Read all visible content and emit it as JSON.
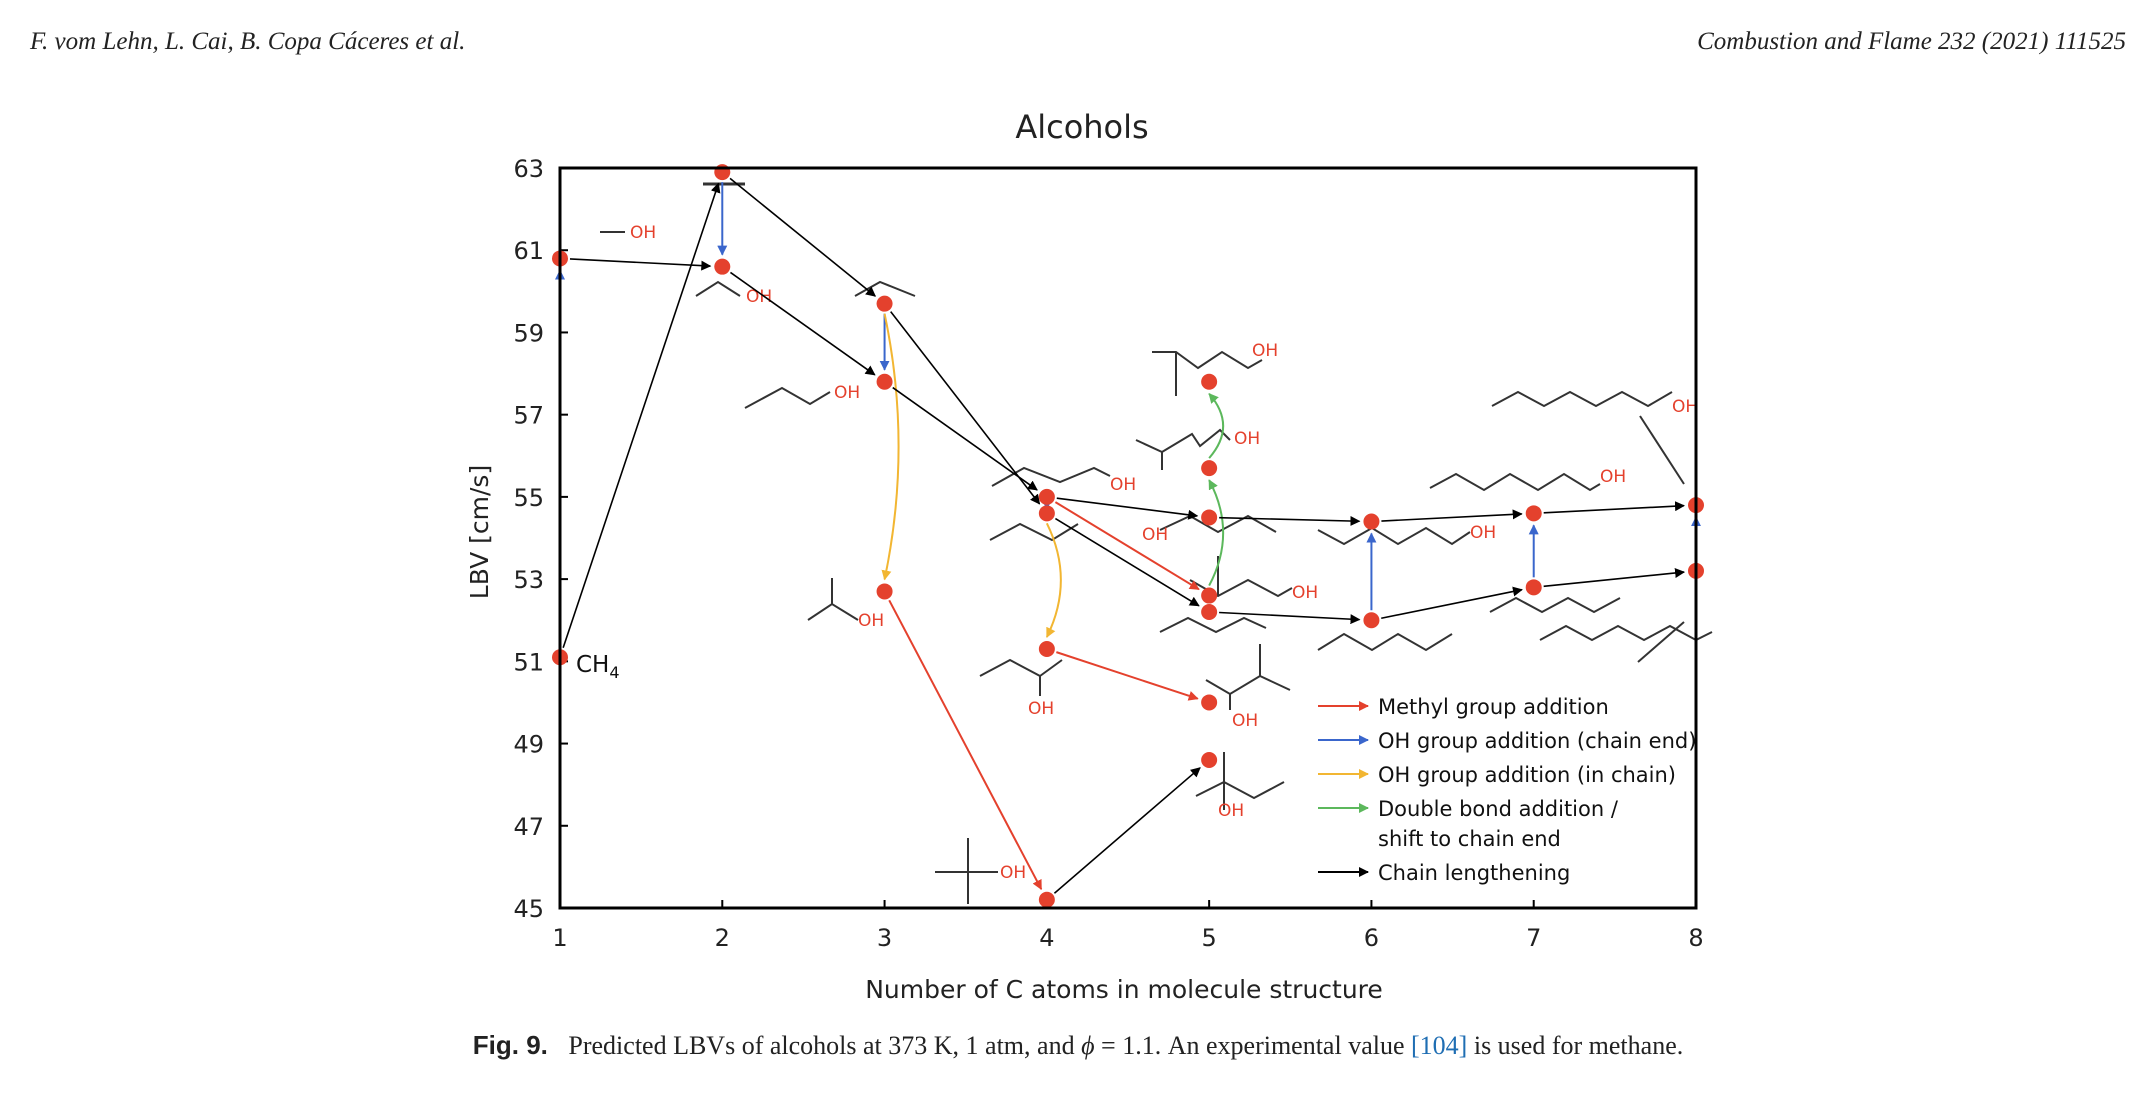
{
  "header": {
    "authors": "F. vom Lehn, L. Cai, B. Copa Cáceres et al.",
    "journal": "Combustion and Flame 232 (2021) 111525"
  },
  "caption": {
    "label": "Fig. 9.",
    "text_before_phi": "Predicted LBVs of alcohols at 373 K, 1 atm, and",
    "phi": "ϕ",
    "text_after_phi": "= 1.1. An experimental value",
    "ref": "[104]",
    "text_end": "is used for methane."
  },
  "colors": {
    "point": "#e4412d",
    "methyl": "#e4412d",
    "oh_end": "#3a66cc",
    "oh_in": "#f2b632",
    "double_bond": "#5cb85c",
    "chain": "#000000"
  },
  "chart_data": {
    "type": "scatter",
    "title": "Alcohols",
    "xlabel": "Number of C atoms in molecule structure",
    "ylabel": "LBV [cm/s]",
    "xlim": [
      1,
      8
    ],
    "ylim": [
      45,
      63
    ],
    "xticks": [
      "1",
      "2",
      "3",
      "4",
      "5",
      "6",
      "7",
      "8"
    ],
    "yticks": [
      "45",
      "47",
      "49",
      "51",
      "53",
      "55",
      "57",
      "59",
      "61",
      "63"
    ],
    "points": [
      {
        "id": "methane",
        "x": 1,
        "y": 51.1
      },
      {
        "id": "methanol",
        "x": 1,
        "y": 60.8
      },
      {
        "id": "ethane",
        "x": 2,
        "y": 62.9
      },
      {
        "id": "ethanol",
        "x": 2,
        "y": 60.6
      },
      {
        "id": "propane",
        "x": 3,
        "y": 59.7
      },
      {
        "id": "1-propanol",
        "x": 3,
        "y": 57.8
      },
      {
        "id": "2-propanol",
        "x": 3,
        "y": 52.7
      },
      {
        "id": "1-butanol",
        "x": 4,
        "y": 55.0
      },
      {
        "id": "butane",
        "x": 4,
        "y": 54.6
      },
      {
        "id": "2-butanol",
        "x": 4,
        "y": 51.3
      },
      {
        "id": "tert-butanol",
        "x": 4,
        "y": 45.2
      },
      {
        "id": "prenol-type",
        "x": 5,
        "y": 57.8
      },
      {
        "id": "pentenol",
        "x": 5,
        "y": 55.7
      },
      {
        "id": "1-pentanol",
        "x": 5,
        "y": 54.5
      },
      {
        "id": "2-methyl-1-butanol",
        "x": 5,
        "y": 52.6
      },
      {
        "id": "pentane",
        "x": 5,
        "y": 52.2
      },
      {
        "id": "3-methyl-2-butanol",
        "x": 5,
        "y": 50.0
      },
      {
        "id": "2-methyl-2-butanol",
        "x": 5,
        "y": 48.6
      },
      {
        "id": "1-hexanol",
        "x": 6,
        "y": 54.4
      },
      {
        "id": "hexane",
        "x": 6,
        "y": 52.0
      },
      {
        "id": "1-heptanol",
        "x": 7,
        "y": 54.6
      },
      {
        "id": "heptane",
        "x": 7,
        "y": 52.8
      },
      {
        "id": "1-octanol",
        "x": 8,
        "y": 54.8
      },
      {
        "id": "octane",
        "x": 8,
        "y": 53.2
      }
    ],
    "arrows": [
      {
        "from": "methane",
        "to": "methanol",
        "type": "oh_end"
      },
      {
        "from": "methane",
        "to": "ethane",
        "type": "chain"
      },
      {
        "from": "methanol",
        "to": "ethanol",
        "type": "chain"
      },
      {
        "from": "ethane",
        "to": "ethanol",
        "type": "oh_end"
      },
      {
        "from": "ethane",
        "to": "propane",
        "type": "chain"
      },
      {
        "from": "ethanol",
        "to": "1-propanol",
        "type": "chain"
      },
      {
        "from": "propane",
        "to": "1-propanol",
        "type": "oh_end"
      },
      {
        "from": "propane",
        "to": "2-propanol",
        "type": "oh_in"
      },
      {
        "from": "propane",
        "to": "butane",
        "type": "chain"
      },
      {
        "from": "1-propanol",
        "to": "1-butanol",
        "type": "chain"
      },
      {
        "from": "2-propanol",
        "to": "tert-butanol",
        "type": "methyl"
      },
      {
        "from": "butane",
        "to": "1-butanol",
        "type": "oh_end"
      },
      {
        "from": "butane",
        "to": "2-butanol",
        "type": "oh_in"
      },
      {
        "from": "butane",
        "to": "pentane",
        "type": "chain"
      },
      {
        "from": "1-butanol",
        "to": "1-pentanol",
        "type": "chain"
      },
      {
        "from": "1-butanol",
        "to": "2-methyl-1-butanol",
        "type": "methyl"
      },
      {
        "from": "2-butanol",
        "to": "3-methyl-2-butanol",
        "type": "methyl"
      },
      {
        "from": "tert-butanol",
        "to": "2-methyl-2-butanol",
        "type": "chain"
      },
      {
        "from": "2-methyl-1-butanol",
        "to": "pentenol",
        "type": "double_bond"
      },
      {
        "from": "pentenol",
        "to": "prenol-type",
        "type": "double_bond"
      },
      {
        "from": "1-pentanol",
        "to": "1-hexanol",
        "type": "chain"
      },
      {
        "from": "pentane",
        "to": "hexane",
        "type": "chain"
      },
      {
        "from": "hexane",
        "to": "1-hexanol",
        "type": "oh_end"
      },
      {
        "from": "1-hexanol",
        "to": "1-heptanol",
        "type": "chain"
      },
      {
        "from": "hexane",
        "to": "heptane",
        "type": "chain"
      },
      {
        "from": "heptane",
        "to": "1-heptanol",
        "type": "oh_end"
      },
      {
        "from": "1-heptanol",
        "to": "1-octanol",
        "type": "chain"
      },
      {
        "from": "heptane",
        "to": "octane",
        "type": "chain"
      },
      {
        "from": "octane",
        "to": "1-octanol",
        "type": "oh_end"
      }
    ],
    "labels": {
      "oh": "OH",
      "ch4_main": "CH",
      "ch4_sub": "4"
    },
    "legend": {
      "position": "bottom-right",
      "entries": [
        {
          "label": "Methyl group addition",
          "color_key": "methyl"
        },
        {
          "label": "OH group addition (chain end)",
          "color_key": "oh_end"
        },
        {
          "label": "OH group addition (in chain)",
          "color_key": "oh_in"
        },
        {
          "label": "Double bond addition /",
          "label2": "shift to chain end",
          "color_key": "double_bond"
        },
        {
          "label": "Chain lengthening",
          "color_key": "chain"
        }
      ]
    }
  }
}
